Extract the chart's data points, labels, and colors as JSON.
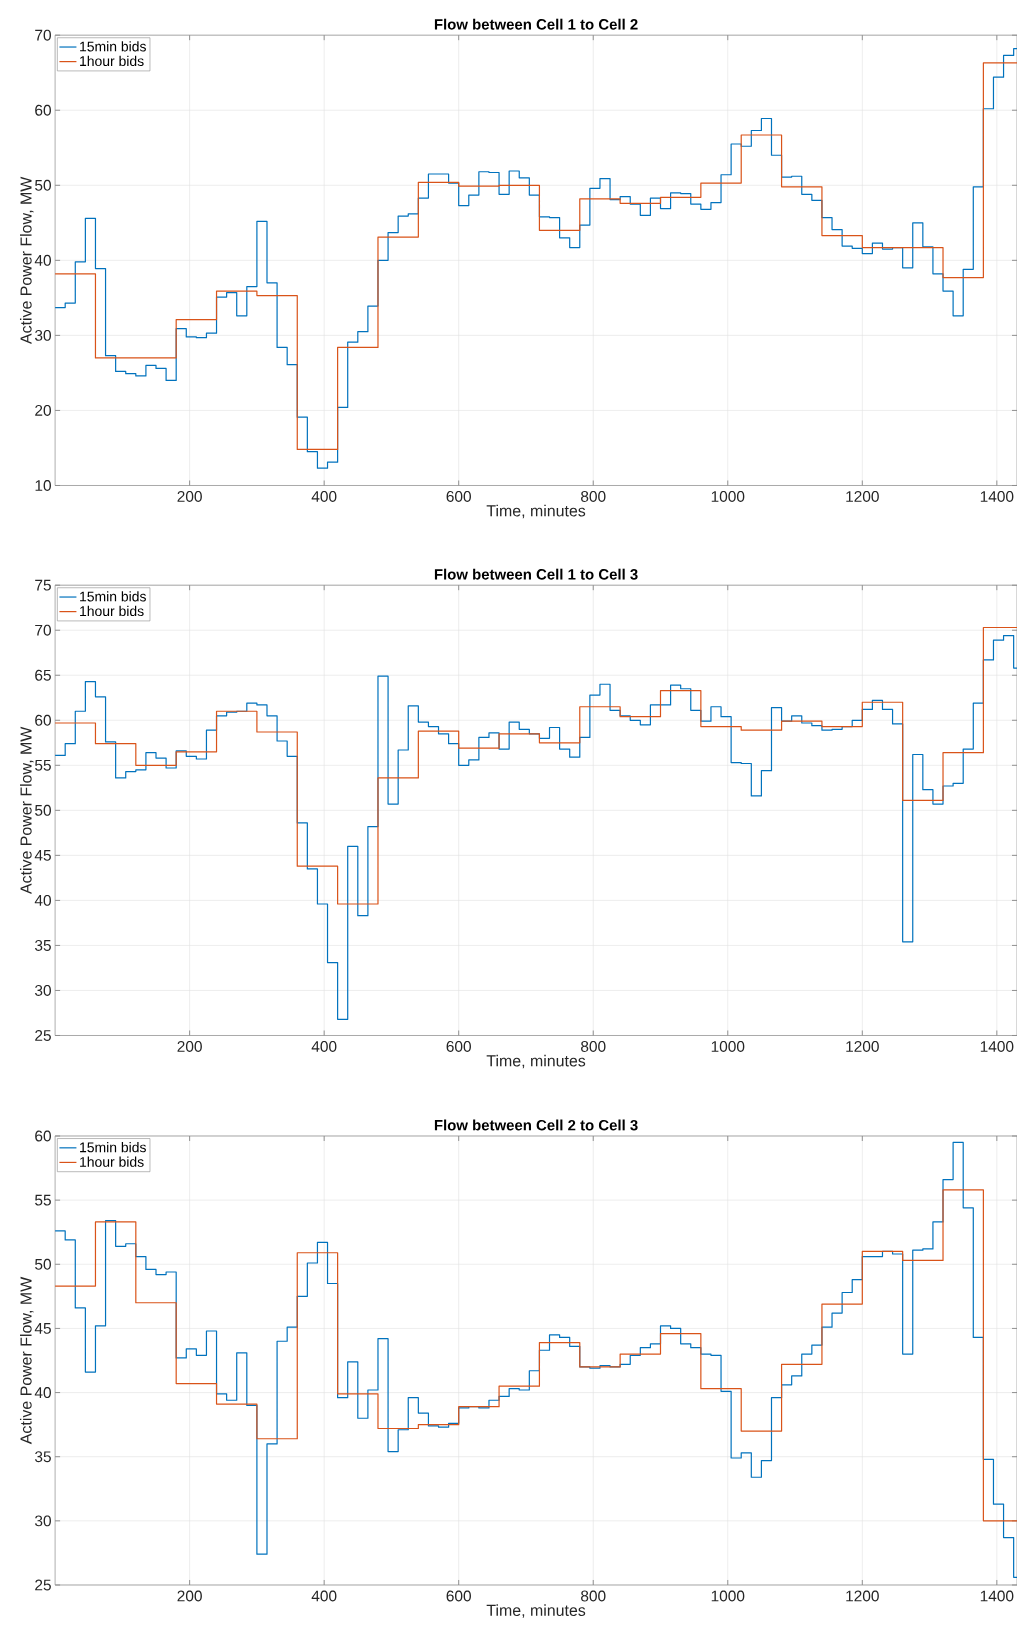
{
  "chart_data": [
    {
      "type": "step",
      "title": "Flow between Cell 1 to Cell 2",
      "xlabel": "Time, minutes",
      "ylabel": "Active Power Flow, MW",
      "xlim": [
        0,
        1430
      ],
      "ylim": [
        10,
        70
      ],
      "xticks": [
        200,
        400,
        600,
        800,
        1000,
        1200,
        1400
      ],
      "yticks": [
        10,
        20,
        30,
        40,
        50,
        60,
        70
      ],
      "grid": true,
      "legend": "top left",
      "marker": "none",
      "series": [
        {
          "name": "15min bids",
          "color": "#0072bd",
          "x": [
            0,
            15,
            30,
            45,
            60,
            75,
            90,
            105,
            120,
            135,
            150,
            165,
            180,
            195,
            210,
            225,
            240,
            255,
            270,
            285,
            300,
            315,
            330,
            345,
            360,
            375,
            390,
            405,
            420,
            435,
            450,
            465,
            480,
            495,
            510,
            525,
            540,
            555,
            570,
            585,
            600,
            615,
            630,
            645,
            660,
            675,
            690,
            705,
            720,
            735,
            750,
            765,
            780,
            795,
            810,
            825,
            840,
            855,
            870,
            885,
            900,
            915,
            930,
            945,
            960,
            975,
            990,
            1005,
            1020,
            1035,
            1050,
            1065,
            1080,
            1095,
            1110,
            1125,
            1140,
            1155,
            1170,
            1185,
            1200,
            1215,
            1230,
            1245,
            1260,
            1275,
            1290,
            1305,
            1320,
            1335,
            1350,
            1365,
            1380,
            1395,
            1410,
            1425,
            1430
          ],
          "values": [
            33.7,
            34.3,
            39.8,
            45.6,
            38.9,
            27.3,
            25.2,
            24.9,
            24.6,
            26.0,
            25.6,
            24.0,
            30.9,
            29.8,
            29.7,
            30.3,
            35.1,
            35.7,
            32.6,
            36.5,
            45.2,
            37.0,
            28.4,
            26.1,
            19.1,
            14.5,
            12.3,
            13.1,
            20.4,
            29.1,
            30.5,
            33.9,
            40.0,
            43.7,
            45.9,
            46.2,
            48.3,
            51.5,
            51.5,
            50.3,
            47.3,
            48.7,
            51.8,
            51.7,
            48.8,
            51.9,
            51.0,
            48.7,
            45.8,
            45.7,
            43.0,
            41.7,
            44.7,
            49.6,
            50.9,
            48.1,
            48.5,
            47.5,
            46.0,
            48.3,
            46.9,
            49.0,
            48.9,
            47.5,
            46.8,
            47.7,
            51.4,
            55.5,
            55.2,
            57.3,
            58.9,
            54.0,
            51.1,
            51.2,
            48.8,
            48.0,
            45.7,
            44.1,
            41.9,
            41.6,
            40.9,
            42.3,
            41.5,
            41.7,
            39.0,
            45.0,
            41.8,
            38.2,
            35.9,
            32.6,
            38.8,
            49.8,
            60.2,
            64.4,
            67.3,
            68.2,
            68.2
          ]
        },
        {
          "name": "1hour bids",
          "color": "#d95319",
          "x": [
            0,
            60,
            120,
            180,
            240,
            300,
            360,
            420,
            480,
            540,
            600,
            660,
            720,
            780,
            840,
            900,
            960,
            1020,
            1080,
            1140,
            1200,
            1260,
            1320,
            1380,
            1430
          ],
          "values": [
            38.2,
            27.0,
            27.0,
            32.1,
            35.9,
            35.3,
            14.8,
            28.4,
            43.1,
            50.4,
            49.9,
            50.0,
            44.0,
            48.2,
            47.6,
            48.4,
            50.3,
            56.7,
            49.8,
            43.3,
            41.7,
            41.7,
            37.7,
            66.3,
            66.3
          ]
        }
      ]
    },
    {
      "type": "step",
      "title": "Flow between Cell 1 to Cell 3",
      "xlabel": "Time, minutes",
      "ylabel": "Active Power Flow, MW",
      "xlim": [
        0,
        1430
      ],
      "ylim": [
        25,
        75
      ],
      "xticks": [
        200,
        400,
        600,
        800,
        1000,
        1200,
        1400
      ],
      "yticks": [
        25,
        30,
        35,
        40,
        45,
        50,
        55,
        60,
        65,
        70,
        75
      ],
      "grid": true,
      "legend": "top left",
      "marker": "none",
      "series": [
        {
          "name": "15min bids",
          "color": "#0072bd",
          "x": [
            0,
            15,
            30,
            45,
            60,
            75,
            90,
            105,
            120,
            135,
            150,
            165,
            180,
            195,
            210,
            225,
            240,
            255,
            270,
            285,
            300,
            315,
            330,
            345,
            360,
            375,
            390,
            405,
            420,
            435,
            450,
            465,
            480,
            495,
            510,
            525,
            540,
            555,
            570,
            585,
            600,
            615,
            630,
            645,
            660,
            675,
            690,
            705,
            720,
            735,
            750,
            765,
            780,
            795,
            810,
            825,
            840,
            855,
            870,
            885,
            900,
            915,
            930,
            945,
            960,
            975,
            990,
            1005,
            1020,
            1035,
            1050,
            1065,
            1080,
            1095,
            1110,
            1125,
            1140,
            1155,
            1170,
            1185,
            1200,
            1215,
            1230,
            1245,
            1260,
            1275,
            1290,
            1305,
            1320,
            1335,
            1350,
            1365,
            1380,
            1395,
            1410,
            1425,
            1430
          ],
          "values": [
            56.1,
            57.4,
            61.0,
            64.3,
            62.6,
            57.6,
            53.6,
            54.3,
            54.5,
            56.4,
            55.8,
            54.7,
            56.6,
            56.0,
            55.7,
            58.9,
            60.5,
            60.9,
            61.0,
            61.9,
            61.7,
            60.5,
            57.7,
            56.0,
            48.6,
            43.5,
            39.6,
            33.1,
            26.8,
            46.0,
            38.3,
            48.2,
            64.9,
            50.7,
            56.7,
            61.6,
            59.8,
            59.3,
            58.5,
            57.4,
            55.0,
            55.6,
            58.1,
            58.6,
            56.8,
            59.8,
            59.0,
            58.5,
            58.0,
            59.2,
            56.8,
            55.9,
            58.1,
            62.8,
            64.0,
            61.1,
            60.5,
            60.0,
            59.5,
            61.7,
            61.7,
            63.9,
            63.5,
            61.1,
            59.9,
            61.5,
            60.4,
            55.3,
            55.2,
            51.6,
            54.4,
            61.4,
            59.9,
            60.5,
            59.7,
            59.4,
            58.9,
            59.0,
            59.3,
            60.0,
            61.2,
            62.2,
            61.2,
            59.6,
            35.4,
            56.2,
            52.3,
            50.7,
            52.7,
            53.0,
            56.8,
            61.9,
            66.7,
            68.9,
            69.4,
            65.8,
            65.8
          ]
        },
        {
          "name": "1hour bids",
          "color": "#d95319",
          "x": [
            0,
            60,
            120,
            180,
            240,
            300,
            360,
            420,
            480,
            540,
            600,
            660,
            720,
            780,
            840,
            900,
            960,
            1020,
            1080,
            1140,
            1200,
            1260,
            1320,
            1380,
            1430
          ],
          "values": [
            59.7,
            57.4,
            55.0,
            56.5,
            61.0,
            58.7,
            43.8,
            39.6,
            53.6,
            58.8,
            56.9,
            58.5,
            57.5,
            61.5,
            60.4,
            63.3,
            59.3,
            58.9,
            59.9,
            59.3,
            62.0,
            51.1,
            56.4,
            70.3,
            70.3
          ]
        }
      ]
    },
    {
      "type": "step",
      "title": "Flow between Cell 2 to Cell 3",
      "xlabel": "Time, minutes",
      "ylabel": "Active Power Flow, MW",
      "xlim": [
        0,
        1430
      ],
      "ylim": [
        25,
        60
      ],
      "xticks": [
        200,
        400,
        600,
        800,
        1000,
        1200,
        1400
      ],
      "yticks": [
        25,
        30,
        35,
        40,
        45,
        50,
        55,
        60
      ],
      "grid": true,
      "legend": "top left",
      "marker": "none",
      "series": [
        {
          "name": "15min bids",
          "color": "#0072bd",
          "x": [
            0,
            15,
            30,
            45,
            60,
            75,
            90,
            105,
            120,
            135,
            150,
            165,
            180,
            195,
            210,
            225,
            240,
            255,
            270,
            285,
            300,
            315,
            330,
            345,
            360,
            375,
            390,
            405,
            420,
            435,
            450,
            465,
            480,
            495,
            510,
            525,
            540,
            555,
            570,
            585,
            600,
            615,
            630,
            645,
            660,
            675,
            690,
            705,
            720,
            735,
            750,
            765,
            780,
            795,
            810,
            825,
            840,
            855,
            870,
            885,
            900,
            915,
            930,
            945,
            960,
            975,
            990,
            1005,
            1020,
            1035,
            1050,
            1065,
            1080,
            1095,
            1110,
            1125,
            1140,
            1155,
            1170,
            1185,
            1200,
            1215,
            1230,
            1245,
            1260,
            1275,
            1290,
            1305,
            1320,
            1335,
            1350,
            1365,
            1380,
            1395,
            1410,
            1425,
            1430
          ],
          "values": [
            52.6,
            51.9,
            46.6,
            41.6,
            45.2,
            53.4,
            51.4,
            51.6,
            50.6,
            49.6,
            49.2,
            49.4,
            42.7,
            43.4,
            42.9,
            44.8,
            39.9,
            39.4,
            43.1,
            39.0,
            27.4,
            36.0,
            44.0,
            45.1,
            47.5,
            50.1,
            51.7,
            48.5,
            39.6,
            42.4,
            38.0,
            40.2,
            44.2,
            35.4,
            37.1,
            39.6,
            38.4,
            37.4,
            37.3,
            37.6,
            38.8,
            38.9,
            38.8,
            39.4,
            39.7,
            40.3,
            40.2,
            41.7,
            43.3,
            44.5,
            44.3,
            43.6,
            42.0,
            41.9,
            42.1,
            42.0,
            42.2,
            42.9,
            43.5,
            43.8,
            45.2,
            45.0,
            43.8,
            43.5,
            43.0,
            42.9,
            40.1,
            34.9,
            35.3,
            33.4,
            34.7,
            39.6,
            40.6,
            41.3,
            43.0,
            43.7,
            45.1,
            46.2,
            47.8,
            48.8,
            50.6,
            50.6,
            51.0,
            50.8,
            43.0,
            51.1,
            51.2,
            53.3,
            56.6,
            59.5,
            54.4,
            44.3,
            34.8,
            31.3,
            28.7,
            25.6,
            25.6
          ]
        },
        {
          "name": "1hour bids",
          "color": "#d95319",
          "x": [
            0,
            60,
            120,
            180,
            240,
            300,
            360,
            420,
            480,
            540,
            600,
            660,
            720,
            780,
            840,
            900,
            960,
            1020,
            1080,
            1140,
            1200,
            1260,
            1320,
            1380,
            1430
          ],
          "values": [
            48.3,
            53.3,
            47.0,
            40.7,
            39.1,
            36.4,
            50.9,
            39.9,
            37.2,
            37.5,
            38.9,
            40.5,
            43.9,
            42.0,
            43.0,
            44.6,
            40.3,
            37.0,
            42.2,
            46.9,
            51.0,
            50.3,
            55.8,
            30.0,
            30.0
          ]
        }
      ]
    }
  ]
}
